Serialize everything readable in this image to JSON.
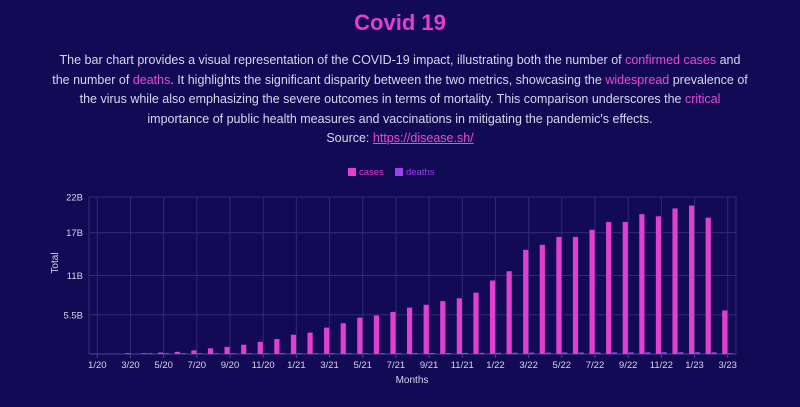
{
  "page": {
    "title": "Covid 19",
    "desc": {
      "p1": "The bar chart provides a visual representation of the COVID-19 impact, illustrating both the number of ",
      "h1": "confirmed cases",
      "p2": " and the number of ",
      "h2": "deaths",
      "p3": ". It highlights the significant disparity between the two metrics, showcasing the ",
      "h3": "widespread",
      "p4": " prevalence of the virus while also emphasizing the severe outcomes in terms of mortality. This comparison underscores the ",
      "h4": "critical",
      "p5": " importance of public health measures and vaccinations in mitigating the pandemic's effects.",
      "source_label": "Source: ",
      "source_link": "https://disease.sh/"
    }
  },
  "colors": {
    "background": "#130a55",
    "title": "#e23ed0",
    "cases": "#e23ed0",
    "deaths": "#9b3ff0",
    "grid": "#2f2a73"
  },
  "chart_data": {
    "type": "bar",
    "xlabel": "Months",
    "ylabel": "Total",
    "y_ticks": [
      "5.5B",
      "11B",
      "17B",
      "22B"
    ],
    "ylim": [
      0,
      22
    ],
    "x_ticks": [
      "1/20",
      "3/20",
      "5/20",
      "7/20",
      "9/20",
      "11/20",
      "1/21",
      "3/21",
      "5/21",
      "7/21",
      "9/21",
      "11/21",
      "1/22",
      "3/22",
      "5/22",
      "7/22",
      "9/22",
      "11/22",
      "1/23",
      "3/23"
    ],
    "categories": [
      "1/20",
      "2/20",
      "3/20",
      "4/20",
      "5/20",
      "6/20",
      "7/20",
      "8/20",
      "9/20",
      "10/20",
      "11/20",
      "12/20",
      "1/21",
      "2/21",
      "3/21",
      "4/21",
      "5/21",
      "6/21",
      "7/21",
      "8/21",
      "9/21",
      "10/21",
      "11/21",
      "12/21",
      "1/22",
      "2/22",
      "3/22",
      "4/22",
      "5/22",
      "6/22",
      "7/22",
      "8/22",
      "9/22",
      "10/22",
      "11/22",
      "12/22",
      "1/23",
      "2/23",
      "3/23"
    ],
    "legend_position": "top",
    "grid": true,
    "series": [
      {
        "name": "cases",
        "values": [
          0.0,
          0.0,
          0.05,
          0.1,
          0.2,
          0.3,
          0.5,
          0.8,
          1.0,
          1.3,
          1.7,
          2.1,
          2.7,
          3.0,
          3.7,
          4.3,
          5.1,
          5.4,
          5.9,
          6.5,
          6.9,
          7.4,
          7.8,
          8.6,
          10.3,
          11.6,
          14.6,
          15.3,
          16.4,
          16.4,
          17.4,
          18.5,
          18.5,
          19.6,
          19.3,
          20.4,
          20.8,
          19.1,
          6.1
        ]
      },
      {
        "name": "deaths",
        "values": [
          0.0,
          0.0,
          0.0,
          0.01,
          0.01,
          0.01,
          0.02,
          0.02,
          0.03,
          0.03,
          0.04,
          0.05,
          0.06,
          0.07,
          0.08,
          0.09,
          0.1,
          0.11,
          0.12,
          0.13,
          0.14,
          0.14,
          0.15,
          0.16,
          0.17,
          0.18,
          0.2,
          0.2,
          0.21,
          0.21,
          0.22,
          0.23,
          0.23,
          0.24,
          0.24,
          0.25,
          0.25,
          0.24,
          0.08
        ]
      }
    ]
  }
}
